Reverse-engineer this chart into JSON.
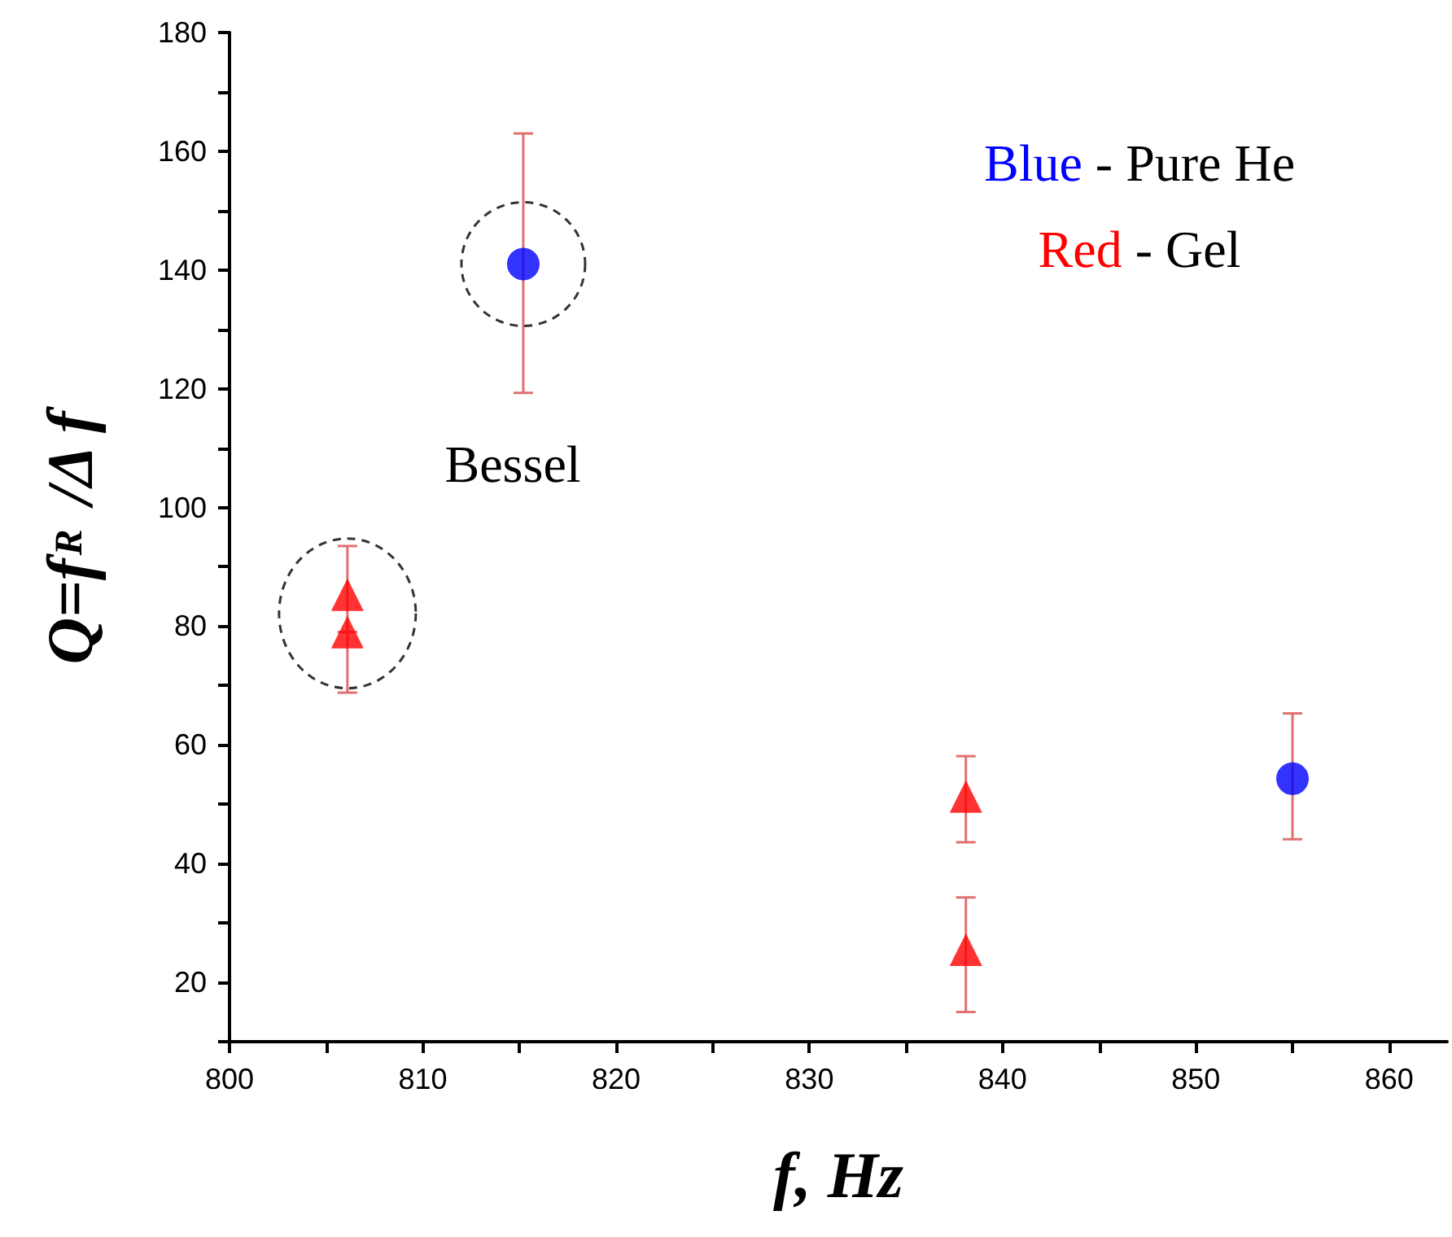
{
  "chart_data": {
    "type": "scatter",
    "xlabel": "f, Hz",
    "ylabel": "Q=f$_{R}$ /Δ f",
    "xlim": [
      800,
      863
    ],
    "ylim": [
      10,
      180
    ],
    "xticks": [
      800,
      {
        "value": 805,
        "label": null
      },
      810,
      {
        "value": 815,
        "label": null
      },
      820,
      {
        "value": 825,
        "label": null
      },
      830,
      {
        "value": 835,
        "label": null
      },
      840,
      {
        "value": 845,
        "label": null
      },
      850,
      {
        "value": 855,
        "label": null
      },
      860
    ],
    "yticks": [
      {
        "value": 10,
        "label": null
      },
      20,
      {
        "value": 30,
        "label": null
      },
      40,
      {
        "value": 50,
        "label": null
      },
      60,
      {
        "value": 70,
        "label": null
      },
      80,
      {
        "value": 90,
        "label": null
      },
      100,
      {
        "value": 110,
        "label": null
      },
      120,
      {
        "value": 130,
        "label": null
      },
      140,
      {
        "value": 150,
        "label": null
      },
      160,
      {
        "value": 170,
        "label": null
      },
      180
    ],
    "grid": false,
    "series": [
      {
        "color": "#0000ff",
        "marker": "circle",
        "x": [
          815.2,
          855
        ],
        "values": [
          141,
          54.3
        ],
        "errors": [
          [
            119.3,
            163
          ],
          [
            44.1,
            65.3
          ]
        ]
      },
      {
        "color": "#ff0000",
        "marker": "triangle",
        "x": [
          806.1,
          806.1,
          838.1,
          838.1
        ],
        "values": [
          85.3,
          79,
          51.3,
          25.5
        ],
        "errors": [
          [
            79,
            93.5
          ],
          [
            68.8,
            79
          ],
          [
            43.6,
            58.1
          ],
          [
            15,
            34.3
          ]
        ]
      }
    ],
    "annotations": [
      "Blue - Pure He",
      "Red - Gel",
      "Bessel"
    ]
  }
}
